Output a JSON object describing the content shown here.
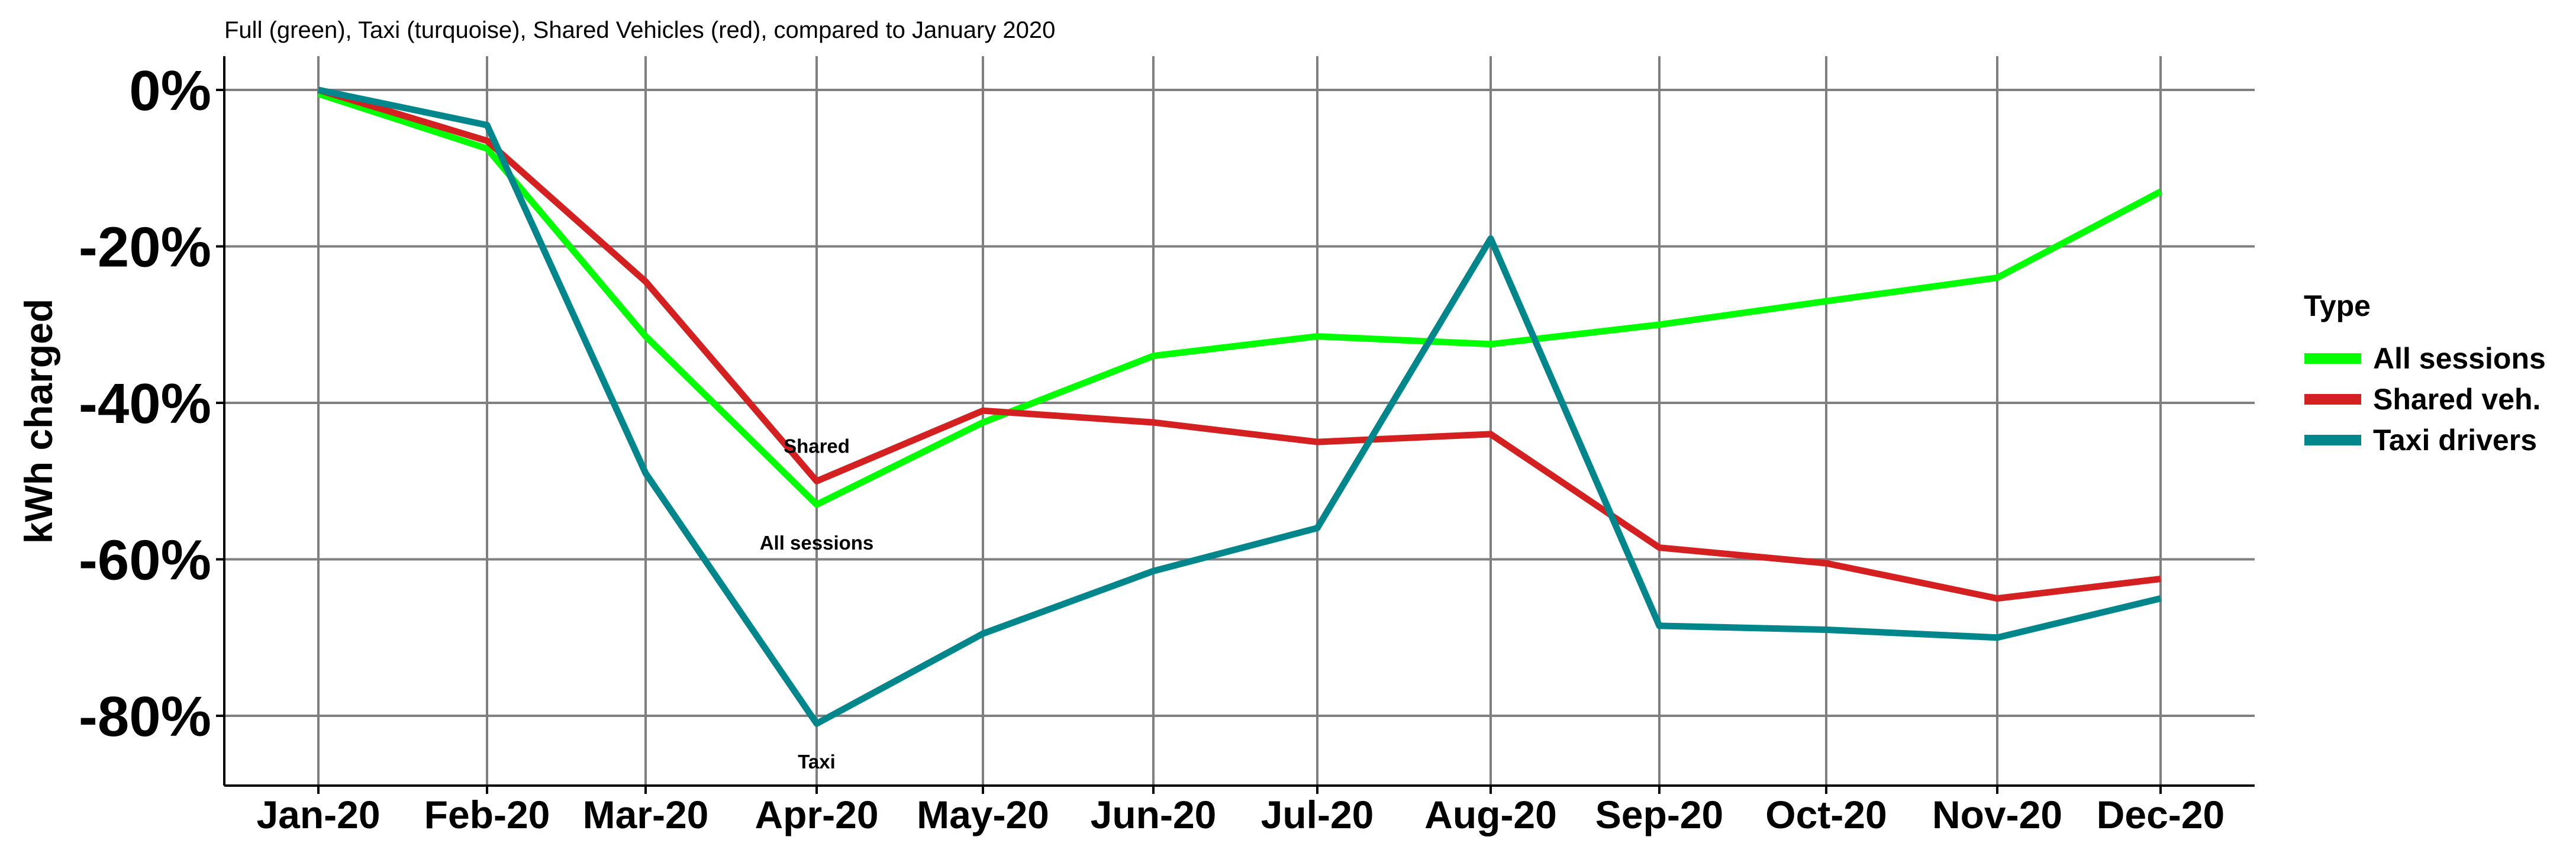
{
  "chart_data": {
    "type": "line",
    "subtitle": "Full (green), Taxi (turquoise), Shared Vehicles (red), compared to January 2020",
    "xlabel": "",
    "ylabel": "kWh charged",
    "categories": [
      "Jan-20",
      "Feb-20",
      "Mar-20",
      "Apr-20",
      "May-20",
      "Jun-20",
      "Jul-20",
      "Aug-20",
      "Sep-20",
      "Oct-20",
      "Nov-20",
      "Dec-20"
    ],
    "ylim": [
      -88,
      4
    ],
    "yticks": [
      0,
      -20,
      -40,
      -60,
      -80
    ],
    "ytick_labels": [
      "0%",
      "-20%",
      "-40%",
      "-60%",
      "-80%"
    ],
    "grid": true,
    "legend_title": "Type",
    "legend_position": "right",
    "series": [
      {
        "key": "all",
        "name": "All sessions",
        "color": "#00ff00",
        "values": [
          -0.5,
          -7.5,
          -31.5,
          -53,
          -42.5,
          -34,
          -31.5,
          -32.5,
          -30,
          -27,
          -24,
          -13
        ]
      },
      {
        "key": "shared",
        "name": "Shared veh.",
        "color": "#d42020",
        "values": [
          0,
          -6.5,
          -24.5,
          -50,
          -41,
          -42.5,
          -45,
          -44,
          -58.5,
          -60.5,
          -65,
          -62.5
        ]
      },
      {
        "key": "taxi",
        "name": "Taxi drivers",
        "color": "#00868b",
        "values": [
          0,
          -4.5,
          -49,
          -81,
          -69.5,
          -61.5,
          -56,
          -19,
          -68.5,
          -69,
          -70,
          -65
        ]
      }
    ],
    "annotations": [
      {
        "text": "Shared",
        "series": "shared",
        "index": 3,
        "placement": "above"
      },
      {
        "text": "All sessions",
        "series": "all",
        "index": 3,
        "placement": "below"
      },
      {
        "text": "Taxi",
        "series": "taxi",
        "index": 3,
        "placement": "below"
      }
    ]
  }
}
